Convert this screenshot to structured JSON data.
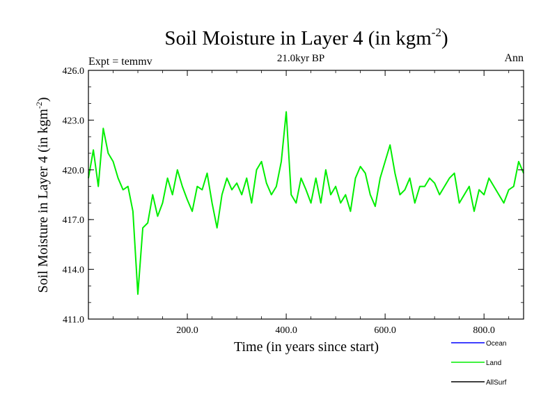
{
  "chart_data": {
    "type": "line",
    "title": "Soil Moisture in Layer 4 (in kgm",
    "title_sup": "-2",
    "title_close": ")",
    "subtitle": "21.0kyr BP",
    "left_label": "Expt = temmv",
    "right_label": "Ann",
    "xlabel": "Time (in years since start)",
    "ylabel": "Soil Moisture in Layer 4 (in kgm",
    "ylabel_sup": "-2",
    "ylabel_close": ")",
    "xlim": [
      0,
      880
    ],
    "ylim": [
      411.0,
      426.0
    ],
    "x_ticks": [
      200,
      400,
      600,
      800
    ],
    "x_tick_labels": [
      "200.0",
      "400.0",
      "600.0",
      "800.0"
    ],
    "y_ticks": [
      411,
      414,
      417,
      420,
      423,
      426
    ],
    "y_tick_labels": [
      "411.0",
      "414.0",
      "417.0",
      "420.0",
      "423.0",
      "426.0"
    ],
    "legend": [
      {
        "name": "Ocean",
        "color": "#0000ff"
      },
      {
        "name": "Land",
        "color": "#00ee00"
      },
      {
        "name": "AllSurf",
        "color": "#000000"
      }
    ],
    "legend_placement": "bottom-right",
    "series": [
      {
        "name": "Land",
        "color": "#00ee00",
        "x": [
          0,
          10,
          20,
          30,
          40,
          50,
          60,
          70,
          80,
          90,
          100,
          110,
          120,
          130,
          140,
          150,
          160,
          170,
          180,
          190,
          200,
          210,
          220,
          230,
          240,
          250,
          260,
          270,
          280,
          290,
          300,
          310,
          320,
          330,
          340,
          350,
          360,
          370,
          380,
          390,
          400,
          410,
          420,
          430,
          440,
          450,
          460,
          470,
          480,
          490,
          500,
          510,
          520,
          530,
          540,
          550,
          560,
          570,
          580,
          590,
          600,
          610,
          620,
          630,
          640,
          650,
          660,
          670,
          680,
          690,
          700,
          710,
          720,
          730,
          740,
          750,
          760,
          770,
          780,
          790,
          800,
          810,
          820,
          830,
          840,
          850,
          860,
          870,
          880
        ],
        "values": [
          419.5,
          421.2,
          419.0,
          422.5,
          421.0,
          420.5,
          419.5,
          418.8,
          419.0,
          417.5,
          412.5,
          416.5,
          416.8,
          418.5,
          417.2,
          418.0,
          419.5,
          418.5,
          420.0,
          419.0,
          418.2,
          417.5,
          419.0,
          418.8,
          419.8,
          418.0,
          416.5,
          418.5,
          419.5,
          418.8,
          419.2,
          418.5,
          419.5,
          418.0,
          420.0,
          420.5,
          419.2,
          418.5,
          419.0,
          420.5,
          423.5,
          418.5,
          418.0,
          419.5,
          418.8,
          418.0,
          419.5,
          418.0,
          420.0,
          418.5,
          419.0,
          418.0,
          418.5,
          417.5,
          419.5,
          420.2,
          419.8,
          418.5,
          417.8,
          419.5,
          420.5,
          421.5,
          419.8,
          418.5,
          418.8,
          419.5,
          418.0,
          419.0,
          419.0,
          419.5,
          419.2,
          418.5,
          419.0,
          419.5,
          419.8,
          418.0,
          418.5,
          419.0,
          417.5,
          418.8,
          418.5,
          419.5,
          419.0,
          418.5,
          418.0,
          418.8,
          419.0,
          420.5,
          419.8
        ]
      }
    ]
  }
}
